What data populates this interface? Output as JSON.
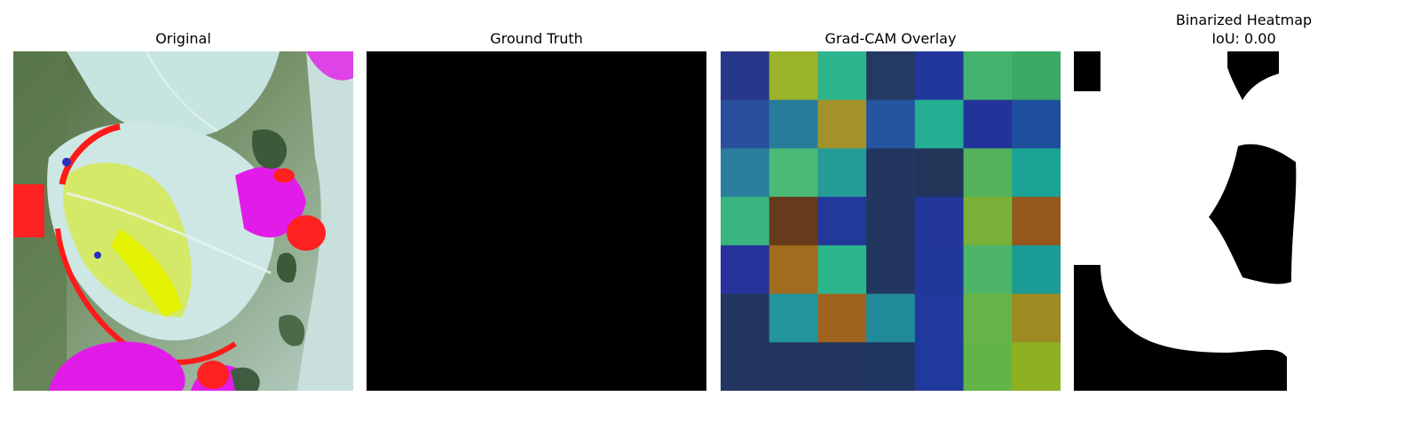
{
  "panels": [
    {
      "id": "original",
      "title": "Original"
    },
    {
      "id": "ground-truth",
      "title": "Ground Truth"
    },
    {
      "id": "gradcam",
      "title": "Grad-CAM Overlay"
    },
    {
      "id": "binarized",
      "title": "Binarized Heatmap",
      "subtitle": "IoU: 0.00"
    }
  ],
  "gradcam_grid": [
    [
      "#27388a",
      "#9ab42a",
      "#2fb58e",
      "#243a63",
      "#22379c",
      "#42b46e",
      "#3aaa64"
    ],
    [
      "#2a4f9e",
      "#297c9c",
      "#a3922a",
      "#2655a0",
      "#24ae92",
      "#22349a",
      "#1f4e9c"
    ],
    [
      "#2a7e9e",
      "#4bb978",
      "#259b98",
      "#223660",
      "#213559",
      "#54b35c",
      "#1ba395"
    ],
    [
      "#3ab47f",
      "#683a1c",
      "#23399a",
      "#223660",
      "#23379a",
      "#7aaf38",
      "#94571c"
    ],
    [
      "#27339a",
      "#a06c1e",
      "#2bb58a",
      "#223660",
      "#20389a",
      "#4eb468",
      "#1a9b95"
    ],
    [
      "#223660",
      "#21949c",
      "#9e6420",
      "#218a98",
      "#20399c",
      "#66b447",
      "#9d8a20"
    ],
    [
      "#223660",
      "#223660",
      "#223660",
      "#203662",
      "#21389c",
      "#63b447",
      "#8db020"
    ]
  ]
}
